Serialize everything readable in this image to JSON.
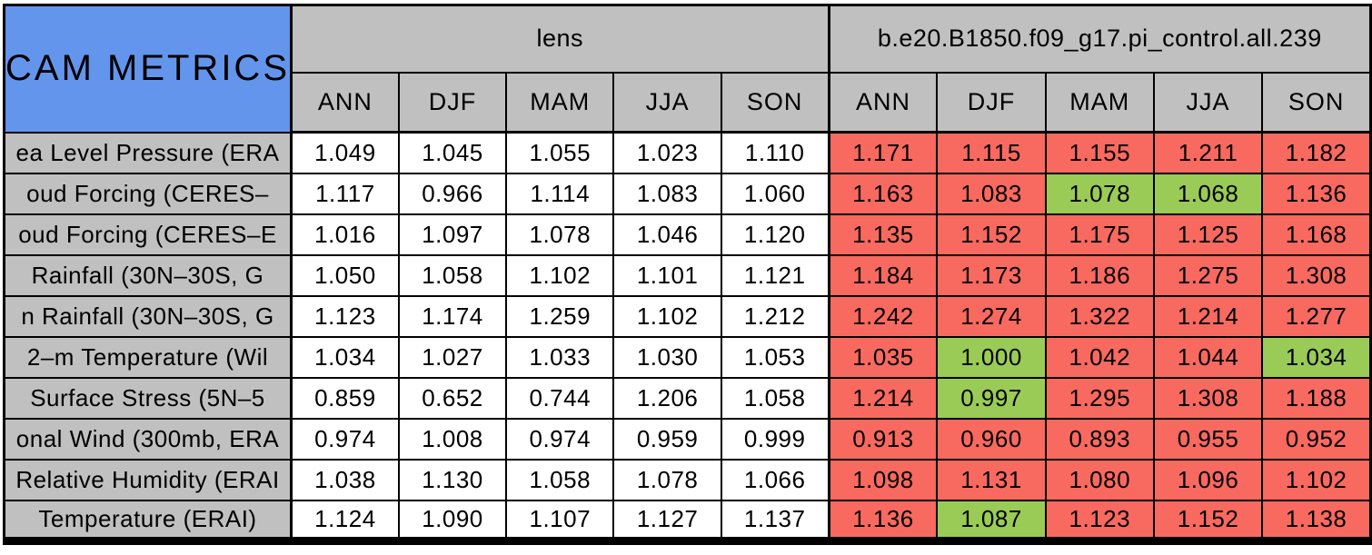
{
  "colors": {
    "blue": "#6495ED",
    "gray": "#C0C0C0",
    "red": "#F8695F",
    "green": "#9ACB57",
    "border": "#000000",
    "background": "#FFFFFF"
  },
  "chart_data": {
    "type": "table",
    "title": "CAM METRICS",
    "column_groups": [
      "lens",
      "b.e20.B1850.f09_g17.pi_control.all.239"
    ],
    "seasons": [
      "ANN",
      "DJF",
      "MAM",
      "JJA",
      "SON"
    ],
    "highlight_colors": {
      "red": "#F8695F",
      "green": "#9ACB57"
    },
    "rows": [
      {
        "label": "ea Level Pressure (ERA",
        "lens": [
          "1.049",
          "1.045",
          "1.055",
          "1.023",
          "1.110"
        ],
        "control": [
          "1.171",
          "1.115",
          "1.155",
          "1.211",
          "1.182"
        ],
        "control_highlight": [
          "red",
          "red",
          "red",
          "red",
          "red"
        ]
      },
      {
        "label": "oud Forcing (CERES–",
        "lens": [
          "1.117",
          "0.966",
          "1.114",
          "1.083",
          "1.060"
        ],
        "control": [
          "1.163",
          "1.083",
          "1.078",
          "1.068",
          "1.136"
        ],
        "control_highlight": [
          "red",
          "red",
          "green",
          "green",
          "red"
        ]
      },
      {
        "label": "oud Forcing (CERES–E",
        "lens": [
          "1.016",
          "1.097",
          "1.078",
          "1.046",
          "1.120"
        ],
        "control": [
          "1.135",
          "1.152",
          "1.175",
          "1.125",
          "1.168"
        ],
        "control_highlight": [
          "red",
          "red",
          "red",
          "red",
          "red"
        ]
      },
      {
        "label": "Rainfall (30N–30S, G",
        "lens": [
          "1.050",
          "1.058",
          "1.102",
          "1.101",
          "1.121"
        ],
        "control": [
          "1.184",
          "1.173",
          "1.186",
          "1.275",
          "1.308"
        ],
        "control_highlight": [
          "red",
          "red",
          "red",
          "red",
          "red"
        ]
      },
      {
        "label": "n Rainfall (30N–30S, G",
        "lens": [
          "1.123",
          "1.174",
          "1.259",
          "1.102",
          "1.212"
        ],
        "control": [
          "1.242",
          "1.274",
          "1.322",
          "1.214",
          "1.277"
        ],
        "control_highlight": [
          "red",
          "red",
          "red",
          "red",
          "red"
        ]
      },
      {
        "label": "2–m Temperature (Wil",
        "lens": [
          "1.034",
          "1.027",
          "1.033",
          "1.030",
          "1.053"
        ],
        "control": [
          "1.035",
          "1.000",
          "1.042",
          "1.044",
          "1.034"
        ],
        "control_highlight": [
          "red",
          "green",
          "red",
          "red",
          "green"
        ]
      },
      {
        "label": "Surface Stress (5N–5",
        "lens": [
          "0.859",
          "0.652",
          "0.744",
          "1.206",
          "1.058"
        ],
        "control": [
          "1.214",
          "0.997",
          "1.295",
          "1.308",
          "1.188"
        ],
        "control_highlight": [
          "red",
          "green",
          "red",
          "red",
          "red"
        ]
      },
      {
        "label": "onal Wind (300mb, ERA",
        "lens": [
          "0.974",
          "1.008",
          "0.974",
          "0.959",
          "0.999"
        ],
        "control": [
          "0.913",
          "0.960",
          "0.893",
          "0.955",
          "0.952"
        ],
        "control_highlight": [
          "red",
          "red",
          "red",
          "red",
          "red"
        ]
      },
      {
        "label": "Relative Humidity (ERAI",
        "lens": [
          "1.038",
          "1.130",
          "1.058",
          "1.078",
          "1.066"
        ],
        "control": [
          "1.098",
          "1.131",
          "1.080",
          "1.096",
          "1.102"
        ],
        "control_highlight": [
          "red",
          "red",
          "red",
          "red",
          "red"
        ]
      },
      {
        "label": "Temperature (ERAI)",
        "lens": [
          "1.124",
          "1.090",
          "1.107",
          "1.127",
          "1.137"
        ],
        "control": [
          "1.136",
          "1.087",
          "1.123",
          "1.152",
          "1.138"
        ],
        "control_highlight": [
          "red",
          "green",
          "red",
          "red",
          "red"
        ]
      }
    ]
  }
}
